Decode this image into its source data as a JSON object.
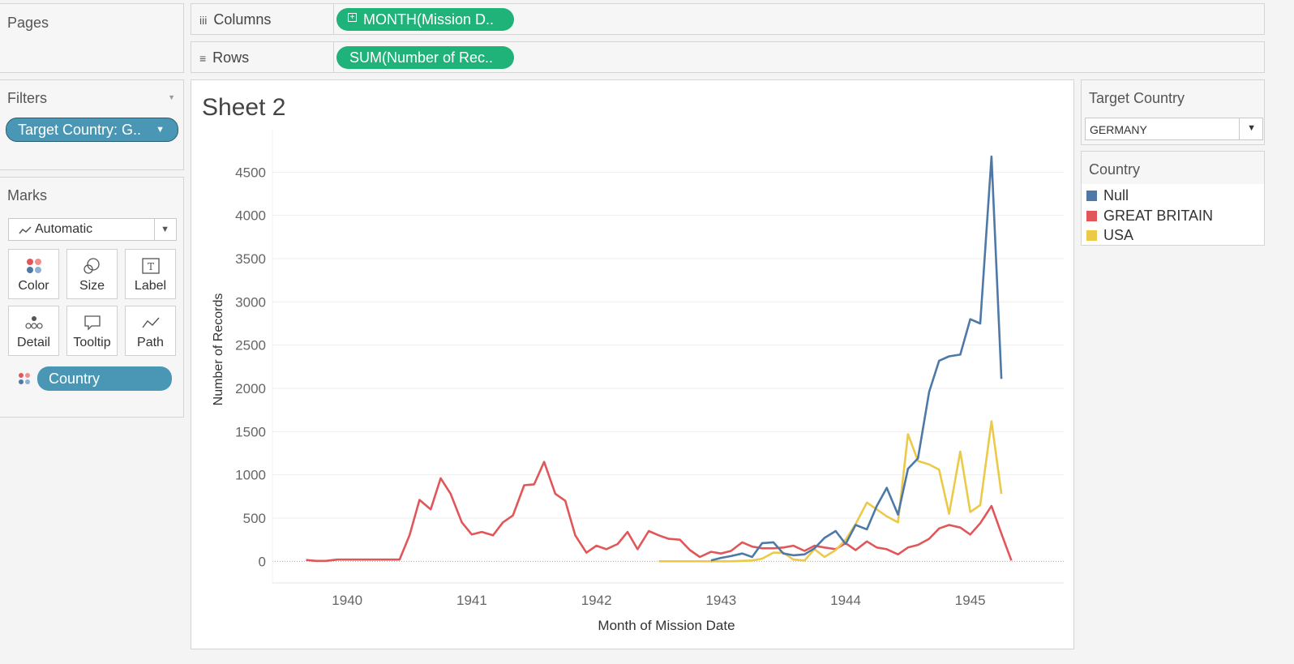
{
  "pages": {
    "title": "Pages"
  },
  "shelves": {
    "columns_label": "Columns",
    "columns_pill": "MONTH(Mission D..",
    "rows_label": "Rows",
    "rows_pill": "SUM(Number of Rec.."
  },
  "filters": {
    "title": "Filters",
    "pill": "Target Country: G.."
  },
  "marks": {
    "title": "Marks",
    "type": "Automatic",
    "cards": [
      "Color",
      "Size",
      "Label",
      "Detail",
      "Tooltip",
      "Path"
    ],
    "color_field": "Country"
  },
  "target_filter": {
    "title": "Target Country",
    "value": "GERMANY"
  },
  "legend": {
    "title": "Country",
    "items": [
      {
        "label": "Null",
        "color": "#4e79a7"
      },
      {
        "label": "GREAT BRITAIN",
        "color": "#e15759"
      },
      {
        "label": "USA",
        "color": "#edc948"
      }
    ]
  },
  "sheet": {
    "title": "Sheet 2"
  },
  "chart_data": {
    "type": "line",
    "xlabel": "Month of Mission Date",
    "ylabel": "Number of Records",
    "xticks": [
      "1940",
      "1941",
      "1942",
      "1943",
      "1944",
      "1945"
    ],
    "xlim": [
      1939.4,
      1945.75
    ],
    "ylim": [
      -250,
      5000
    ],
    "yticks": [
      0,
      500,
      1000,
      1500,
      2000,
      2500,
      3000,
      3500,
      4000,
      4500
    ],
    "grid": true,
    "series": [
      {
        "name": "GREAT BRITAIN",
        "color": "#e15759",
        "x": [
          1939.67,
          1939.75,
          1939.83,
          1939.92,
          1940.0,
          1940.08,
          1940.17,
          1940.25,
          1940.33,
          1940.42,
          1940.5,
          1940.58,
          1940.67,
          1940.75,
          1940.83,
          1940.92,
          1941.0,
          1941.08,
          1941.17,
          1941.25,
          1941.33,
          1941.42,
          1941.5,
          1941.58,
          1941.67,
          1941.75,
          1941.83,
          1941.92,
          1942.0,
          1942.08,
          1942.17,
          1942.25,
          1942.33,
          1942.42,
          1942.5,
          1942.58,
          1942.67,
          1942.75,
          1942.83,
          1942.92,
          1943.0,
          1943.08,
          1943.17,
          1943.25,
          1943.33,
          1943.42,
          1943.5,
          1943.58,
          1943.67,
          1943.75,
          1943.83,
          1943.92,
          1944.0,
          1944.08,
          1944.17,
          1944.25,
          1944.33,
          1944.42,
          1944.5,
          1944.58,
          1944.67,
          1944.75,
          1944.83,
          1944.92,
          1945.0,
          1945.08,
          1945.17,
          1945.25,
          1945.33
        ],
        "values": [
          15,
          5,
          5,
          20,
          20,
          20,
          20,
          20,
          20,
          20,
          300,
          710,
          600,
          960,
          780,
          450,
          310,
          340,
          300,
          450,
          530,
          880,
          890,
          1150,
          780,
          700,
          300,
          100,
          180,
          140,
          200,
          340,
          140,
          350,
          300,
          260,
          250,
          130,
          50,
          110,
          90,
          120,
          220,
          170,
          150,
          150,
          160,
          180,
          120,
          180,
          160,
          140,
          210,
          130,
          230,
          160,
          140,
          80,
          160,
          190,
          260,
          380,
          420,
          390,
          310,
          440,
          640,
          320,
          10
        ]
      },
      {
        "name": "USA",
        "color": "#edc948",
        "x": [
          1942.5,
          1942.58,
          1942.67,
          1942.75,
          1942.83,
          1942.92,
          1943.0,
          1943.08,
          1943.17,
          1943.25,
          1943.33,
          1943.42,
          1943.5,
          1943.58,
          1943.67,
          1943.75,
          1943.83,
          1943.92,
          1944.0,
          1944.08,
          1944.17,
          1944.25,
          1944.33,
          1944.42,
          1944.5,
          1944.58,
          1944.67,
          1944.75,
          1944.83,
          1944.92,
          1945.0,
          1945.08,
          1945.17,
          1945.25
        ],
        "values": [
          0,
          0,
          0,
          0,
          0,
          0,
          0,
          0,
          5,
          10,
          30,
          100,
          100,
          20,
          10,
          140,
          50,
          130,
          250,
          430,
          680,
          600,
          520,
          450,
          1470,
          1160,
          1120,
          1060,
          550,
          1270,
          570,
          650,
          1620,
          780
        ]
      },
      {
        "name": "Null",
        "color": "#4e79a7",
        "x": [
          1942.92,
          1943.0,
          1943.08,
          1943.17,
          1943.25,
          1943.33,
          1943.42,
          1943.5,
          1943.58,
          1943.67,
          1943.75,
          1943.83,
          1943.92,
          1944.0,
          1944.08,
          1944.17,
          1944.25,
          1944.33,
          1944.42,
          1944.5,
          1944.58,
          1944.67,
          1944.75,
          1944.83,
          1944.92,
          1945.0,
          1945.08,
          1945.17,
          1945.25
        ],
        "values": [
          10,
          40,
          60,
          90,
          50,
          210,
          220,
          90,
          70,
          80,
          150,
          270,
          350,
          200,
          420,
          370,
          640,
          850,
          540,
          1070,
          1190,
          1960,
          2320,
          2370,
          2390,
          2800,
          2750,
          4680,
          2110
        ]
      }
    ]
  }
}
